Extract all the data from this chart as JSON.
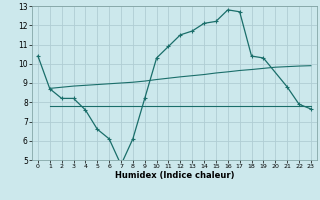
{
  "xlabel": "Humidex (Indice chaleur)",
  "xlim": [
    -0.5,
    23.5
  ],
  "ylim": [
    5,
    13
  ],
  "yticks": [
    5,
    6,
    7,
    8,
    9,
    10,
    11,
    12,
    13
  ],
  "xticks": [
    0,
    1,
    2,
    3,
    4,
    5,
    6,
    7,
    8,
    9,
    10,
    11,
    12,
    13,
    14,
    15,
    16,
    17,
    18,
    19,
    20,
    21,
    22,
    23
  ],
  "background_color": "#cce8ec",
  "grid_color": "#b0cdd4",
  "line_color": "#1a6e6a",
  "line1_x": [
    0,
    1,
    2,
    3,
    4,
    5,
    6,
    7,
    8,
    9,
    10,
    11,
    12,
    13,
    14,
    15,
    16,
    17,
    18,
    19,
    21,
    22,
    23
  ],
  "line1_y": [
    10.4,
    8.7,
    8.2,
    8.2,
    7.6,
    6.6,
    6.1,
    4.75,
    6.1,
    8.2,
    10.3,
    10.9,
    11.5,
    11.7,
    12.1,
    12.2,
    12.8,
    12.7,
    10.4,
    10.3,
    8.8,
    7.9,
    7.65
  ],
  "line2_x": [
    1,
    2,
    3,
    4,
    5,
    6,
    7,
    8,
    9,
    10,
    11,
    12,
    13,
    14,
    15,
    16,
    17,
    18,
    19,
    20,
    21,
    22,
    23
  ],
  "line2_y": [
    8.72,
    8.78,
    8.84,
    8.88,
    8.92,
    8.96,
    9.0,
    9.04,
    9.1,
    9.18,
    9.25,
    9.32,
    9.38,
    9.44,
    9.52,
    9.58,
    9.65,
    9.7,
    9.76,
    9.82,
    9.85,
    9.88,
    9.9
  ],
  "line3_x": [
    1,
    2,
    3,
    4,
    5,
    6,
    7,
    8,
    9,
    10,
    11,
    12,
    13,
    14,
    15,
    16,
    17,
    18,
    19,
    20,
    21,
    22,
    23
  ],
  "line3_y": [
    7.78,
    7.78,
    7.78,
    7.78,
    7.78,
    7.78,
    7.78,
    7.78,
    7.78,
    7.78,
    7.78,
    7.78,
    7.78,
    7.78,
    7.78,
    7.78,
    7.78,
    7.78,
    7.78,
    7.78,
    7.78,
    7.78,
    7.78
  ]
}
